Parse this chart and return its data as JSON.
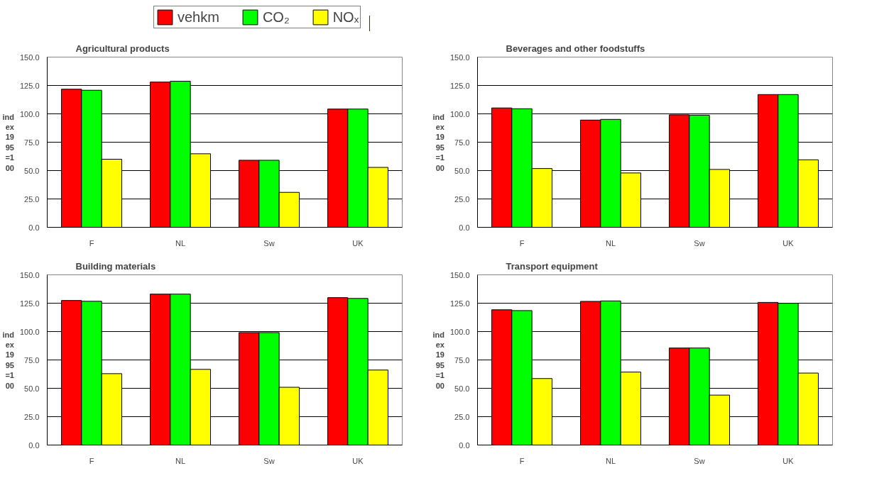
{
  "chart_data": [
    {
      "type": "bar",
      "title": "Agricultural products",
      "ylabel": "ind\nex\n19\n95\n=1\n00",
      "categories": [
        "F",
        "NL",
        "Sw",
        "UK"
      ],
      "ylim": [
        0,
        150
      ],
      "yticks": [
        {
          "value": 0,
          "label": "0.0"
        },
        {
          "value": 25,
          "label": "25.0"
        },
        {
          "value": 50,
          "label": "50.0"
        },
        {
          "value": 75,
          "label": "75.0"
        },
        {
          "value": 100,
          "label": "100.0"
        },
        {
          "value": 125,
          "label": "125.0"
        },
        {
          "value": 150,
          "label": "150.0"
        }
      ],
      "grid": "y",
      "legend": "top",
      "series": [
        {
          "name": "vehkm",
          "color": "#ff0000",
          "values": [
            121.7,
            128.0,
            59.1,
            104.2
          ]
        },
        {
          "name": "CO₂",
          "color": "#00ff00",
          "values": [
            120.8,
            128.7,
            59.1,
            104.2
          ]
        },
        {
          "name": "NOₓ",
          "color": "#ffff00",
          "values": [
            60.0,
            64.8,
            30.8,
            52.8
          ]
        }
      ]
    },
    {
      "type": "bar",
      "title": "Beverages and other foodstuffs",
      "ylabel": "ind\nex\n19\n95\n=1\n00",
      "categories": [
        "F",
        "NL",
        "Sw",
        "UK"
      ],
      "ylim": [
        0,
        150
      ],
      "yticks": [
        {
          "value": 0,
          "label": "0.0"
        },
        {
          "value": 25,
          "label": "25.0"
        },
        {
          "value": 50,
          "label": "50.0"
        },
        {
          "value": 75,
          "label": "75.0"
        },
        {
          "value": 100,
          "label": "100.0"
        },
        {
          "value": 125,
          "label": "125.0"
        },
        {
          "value": 150,
          "label": "150.0"
        }
      ],
      "grid": "y",
      "series": [
        {
          "color": "#ff0000",
          "values": [
            105.2,
            94.5,
            99.1,
            117.0
          ]
        },
        {
          "color": "#00ff00",
          "values": [
            104.5,
            95.1,
            98.8,
            117.0
          ]
        },
        {
          "color": "#ffff00",
          "values": [
            51.8,
            47.9,
            51.0,
            59.5
          ]
        }
      ]
    },
    {
      "type": "bar",
      "title": "Building materials",
      "ylabel": "ind\nex\n19\n95\n=1\n00",
      "categories": [
        "F",
        "NL",
        "Sw",
        "UK"
      ],
      "ylim": [
        0,
        150
      ],
      "yticks": [
        {
          "value": 0,
          "label": "0.0"
        },
        {
          "value": 25,
          "label": "25.0"
        },
        {
          "value": 50,
          "label": "50.0"
        },
        {
          "value": 75,
          "label": "75.0"
        },
        {
          "value": 100,
          "label": "100.0"
        },
        {
          "value": 125,
          "label": "125.0"
        },
        {
          "value": 150,
          "label": "150.0"
        }
      ],
      "grid": "y",
      "series": [
        {
          "color": "#ff0000",
          "values": [
            127.4,
            133.0,
            99.1,
            129.9
          ]
        },
        {
          "color": "#00ff00",
          "values": [
            126.7,
            133.0,
            99.1,
            129.2
          ]
        },
        {
          "color": "#ffff00",
          "values": [
            62.9,
            66.7,
            50.9,
            66.1
          ]
        }
      ]
    },
    {
      "type": "bar",
      "title": "Transport equipment",
      "ylabel": "ind\nex\n19\n95\n=1\n00",
      "categories": [
        "F",
        "NL",
        "Sw",
        "UK"
      ],
      "ylim": [
        0,
        150
      ],
      "yticks": [
        {
          "value": 0,
          "label": "0.0"
        },
        {
          "value": 25,
          "label": "25.0"
        },
        {
          "value": 50,
          "label": "50.0"
        },
        {
          "value": 75,
          "label": "75.0"
        },
        {
          "value": 100,
          "label": "100.0"
        },
        {
          "value": 125,
          "label": "125.0"
        },
        {
          "value": 150,
          "label": "150.0"
        }
      ],
      "grid": "y",
      "series": [
        {
          "color": "#ff0000",
          "values": [
            119.2,
            126.6,
            85.5,
            125.7
          ]
        },
        {
          "color": "#00ff00",
          "values": [
            118.5,
            127.0,
            85.5,
            124.9
          ]
        },
        {
          "color": "#ffff00",
          "values": [
            58.6,
            64.3,
            44.0,
            63.4
          ]
        }
      ]
    }
  ]
}
